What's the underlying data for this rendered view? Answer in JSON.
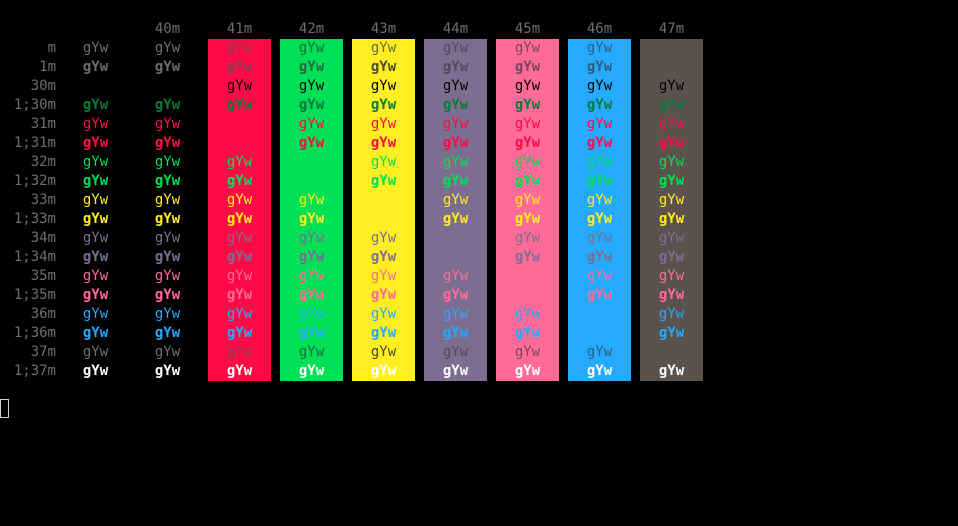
{
  "columns": [
    "",
    "40m",
    "41m",
    "42m",
    "43m",
    "44m",
    "45m",
    "46m",
    "47m"
  ],
  "column_bg": [
    "",
    "",
    "#ff0a46",
    "#00e056",
    "#ffee22",
    "#7d6e91",
    "#ff6b98",
    "#24aaff",
    "#5c524d"
  ],
  "sample_text": "gYw",
  "rows": [
    {
      "label": "m",
      "bold": false,
      "fg": "#6e6e6e",
      "show": [
        1,
        1,
        1,
        1,
        1,
        1,
        1,
        1,
        0
      ],
      "override": {
        "2": "#8a3b50",
        "3": "#1c6e3e",
        "4": "#6e6b3a",
        "5": "#524a5c",
        "6": "#7a4558",
        "7": "#2f5e7d"
      }
    },
    {
      "label": "1m",
      "bold": true,
      "fg": "#6e6e6e",
      "show": [
        1,
        1,
        1,
        1,
        1,
        1,
        1,
        1,
        0
      ],
      "override": {
        "2": "#8a3b50",
        "3": "#1c6e3e",
        "4": "#4a4a2a",
        "5": "#524a5c",
        "6": "#7a4558",
        "7": "#2f5e7d"
      }
    },
    {
      "label": "30m",
      "bold": false,
      "fg": "#000000",
      "show": [
        0,
        0,
        1,
        1,
        1,
        1,
        1,
        1,
        1
      ],
      "override": {}
    },
    {
      "label": "1;30m",
      "bold": true,
      "fg": "#0a7a3c",
      "show": [
        1,
        1,
        1,
        1,
        1,
        1,
        1,
        1,
        1
      ],
      "override": {
        "3": "#0a7a3c",
        "8": "#0a7a3c"
      }
    },
    {
      "label": "31m",
      "bold": false,
      "fg": "#ff0a46",
      "show": [
        1,
        1,
        0,
        1,
        1,
        1,
        1,
        1,
        1
      ],
      "override": {
        "8": "#ff0a46"
      }
    },
    {
      "label": "1;31m",
      "bold": true,
      "fg": "#ff0a46",
      "show": [
        1,
        1,
        0,
        1,
        1,
        1,
        1,
        1,
        1
      ],
      "override": {}
    },
    {
      "label": "32m",
      "bold": false,
      "fg": "#00e056",
      "show": [
        1,
        1,
        1,
        0,
        1,
        1,
        1,
        1,
        1
      ],
      "override": {}
    },
    {
      "label": "1;32m",
      "bold": true,
      "fg": "#00e056",
      "show": [
        1,
        1,
        1,
        0,
        1,
        1,
        1,
        1,
        1
      ],
      "override": {}
    },
    {
      "label": "33m",
      "bold": false,
      "fg": "#ffee22",
      "show": [
        1,
        1,
        1,
        1,
        0,
        1,
        1,
        1,
        1
      ],
      "override": {}
    },
    {
      "label": "1;33m",
      "bold": true,
      "fg": "#ffee22",
      "show": [
        1,
        1,
        1,
        1,
        0,
        1,
        1,
        1,
        1
      ],
      "override": {}
    },
    {
      "label": "34m",
      "bold": false,
      "fg": "#7d6e91",
      "show": [
        1,
        1,
        1,
        1,
        1,
        0,
        1,
        1,
        1
      ],
      "override": {}
    },
    {
      "label": "1;34m",
      "bold": true,
      "fg": "#7d6e91",
      "show": [
        1,
        1,
        1,
        1,
        1,
        0,
        1,
        1,
        1
      ],
      "override": {}
    },
    {
      "label": "35m",
      "bold": false,
      "fg": "#ff6b98",
      "show": [
        1,
        1,
        1,
        1,
        1,
        1,
        0,
        1,
        1
      ],
      "override": {}
    },
    {
      "label": "1;35m",
      "bold": true,
      "fg": "#ff6b98",
      "show": [
        1,
        1,
        1,
        1,
        1,
        1,
        0,
        1,
        1
      ],
      "override": {}
    },
    {
      "label": "36m",
      "bold": false,
      "fg": "#24aaff",
      "show": [
        1,
        1,
        1,
        1,
        1,
        1,
        1,
        0,
        1
      ],
      "override": {}
    },
    {
      "label": "1;36m",
      "bold": true,
      "fg": "#24aaff",
      "show": [
        1,
        1,
        1,
        1,
        1,
        1,
        1,
        0,
        1
      ],
      "override": {}
    },
    {
      "label": "37m",
      "bold": false,
      "fg": "#6e6e6e",
      "show": [
        1,
        1,
        1,
        1,
        1,
        1,
        1,
        1,
        0
      ],
      "override": {
        "2": "#8a3b50",
        "3": "#1c6e3e",
        "4": "#4a4a2a",
        "5": "#524a5c",
        "6": "#7a4558",
        "7": "#2f5e7d"
      }
    },
    {
      "label": "1;37m",
      "bold": true,
      "fg": "#ffffff",
      "show": [
        1,
        1,
        1,
        1,
        1,
        1,
        1,
        1,
        1
      ],
      "override": {}
    }
  ],
  "colors": {
    "background": "#000000",
    "header": "#6e6e6e",
    "cursor": "#cfcfcf"
  }
}
